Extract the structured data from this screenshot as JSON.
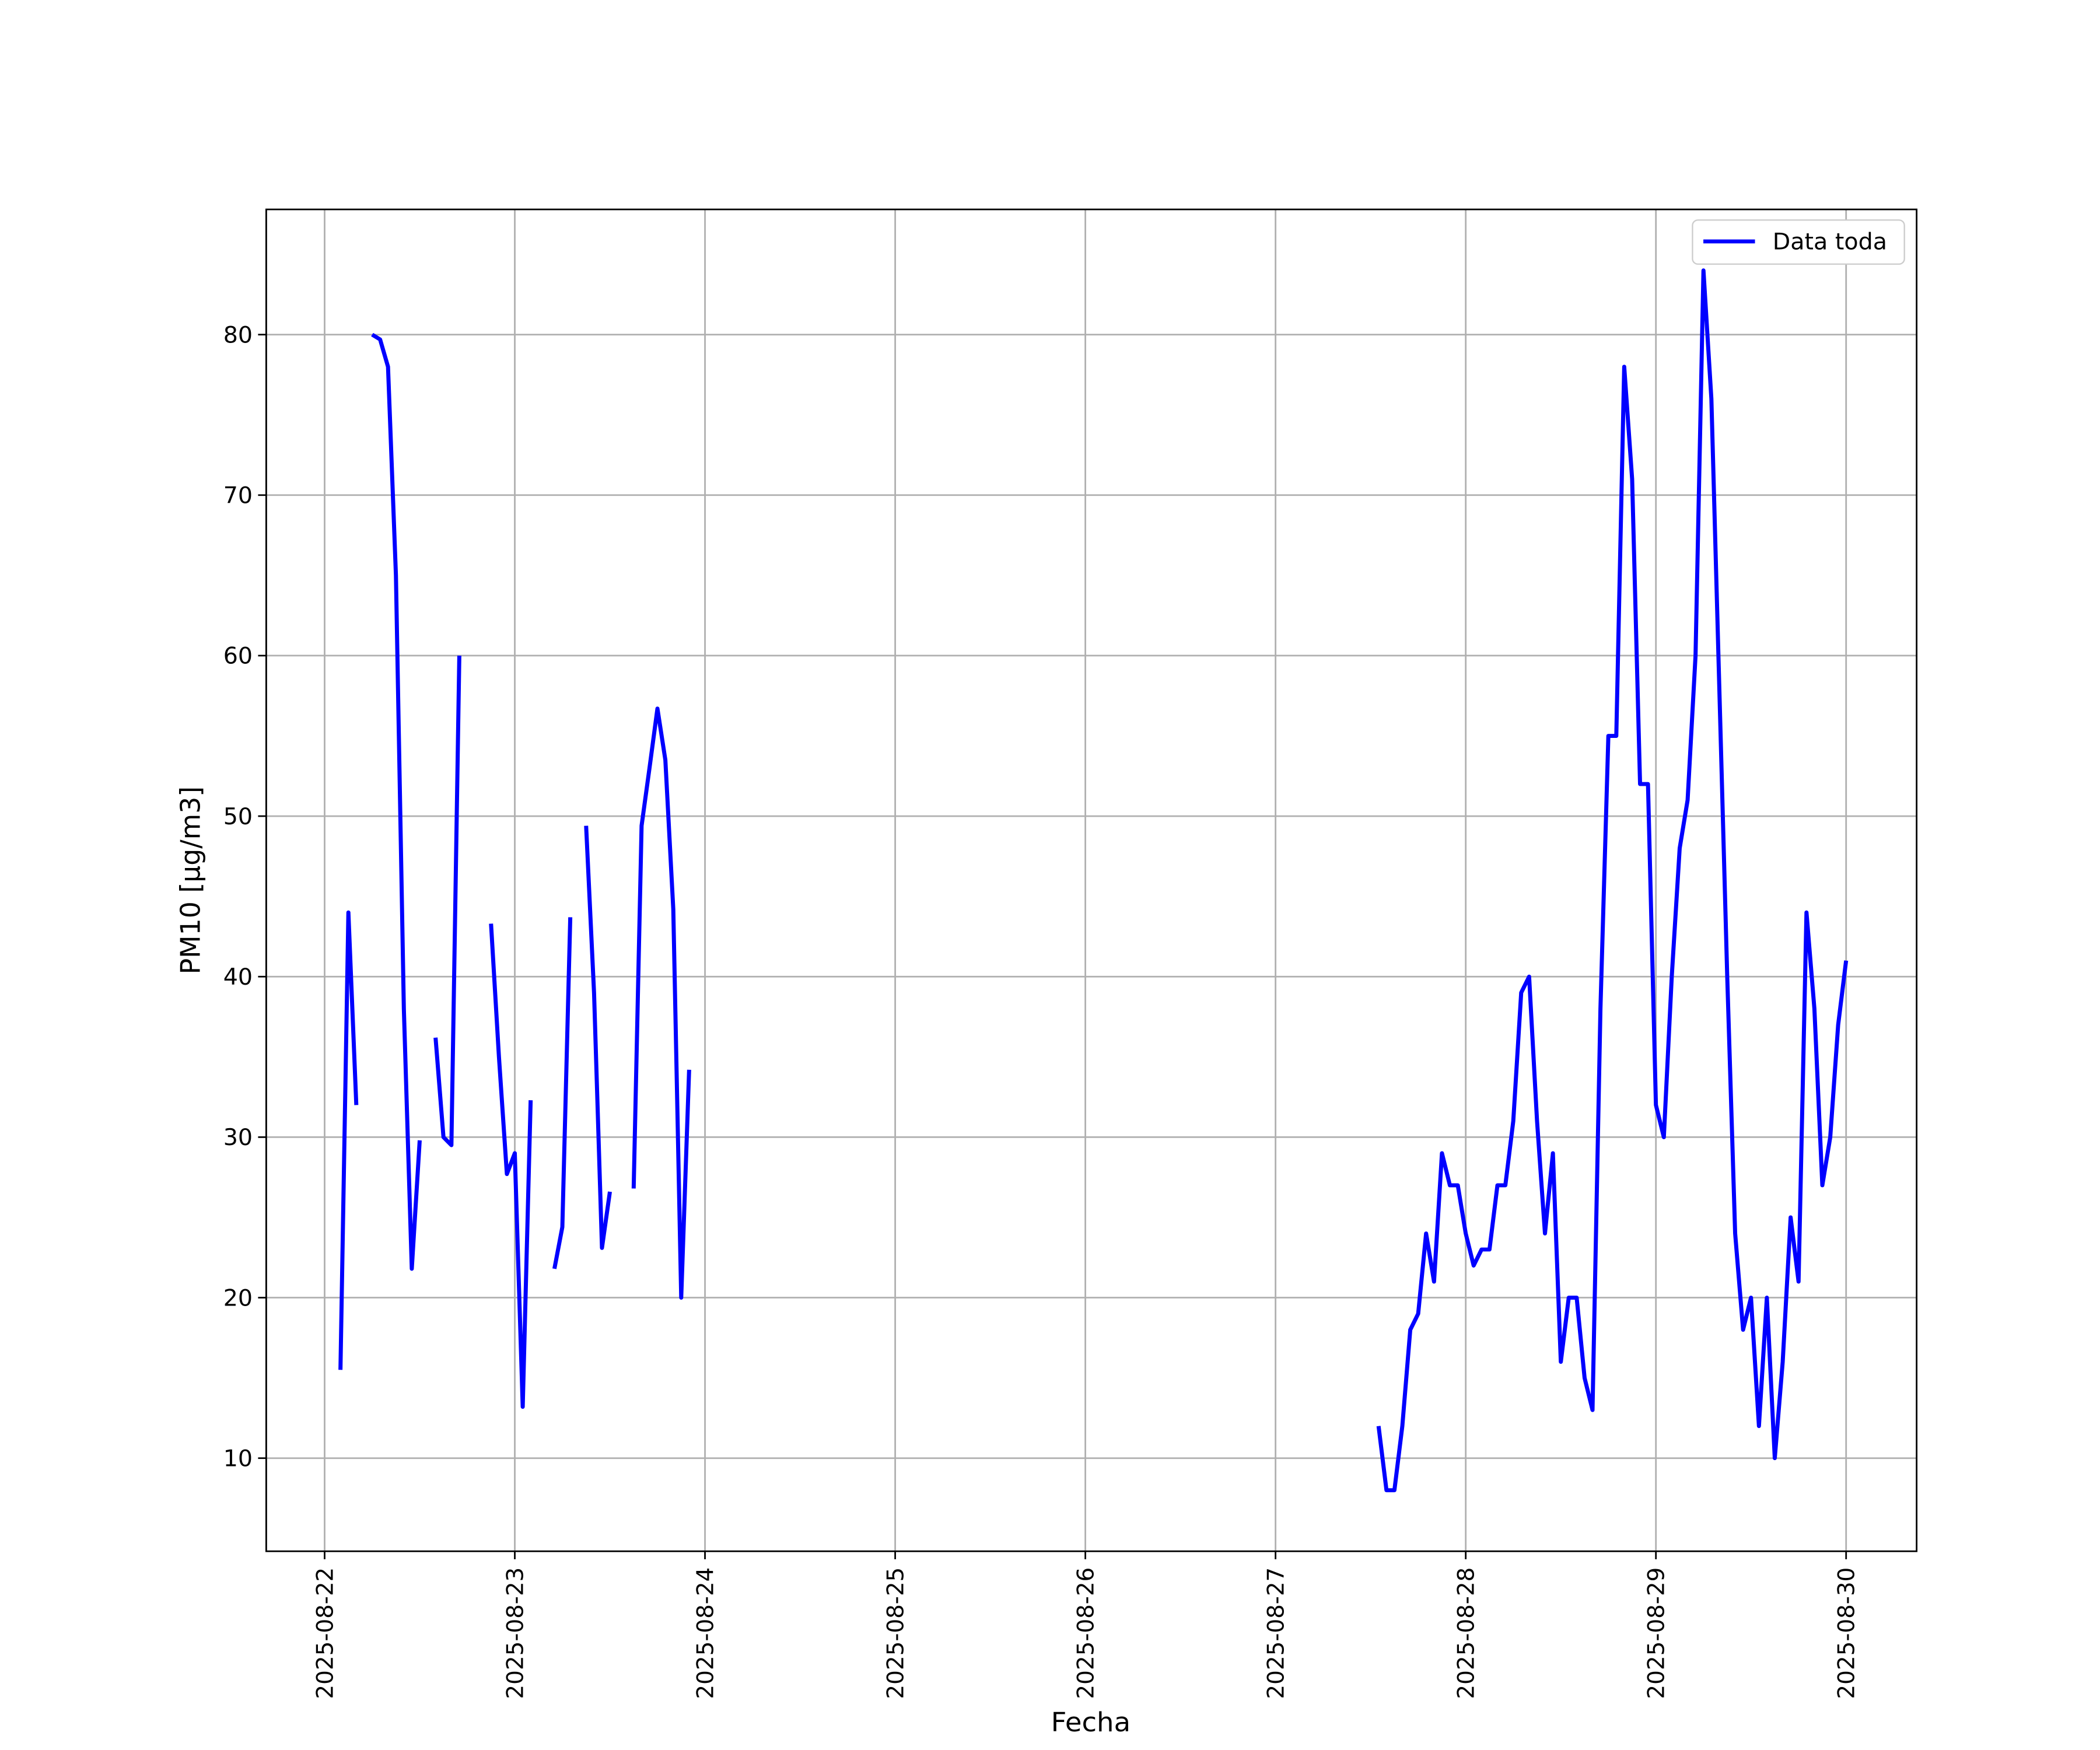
{
  "chart_data": {
    "type": "line",
    "xlabel": "Fecha",
    "ylabel": "PM10 [μg/m3]",
    "grid": true,
    "legend": "upper right",
    "x": [
      "2025-08-22 02:00",
      "2025-08-22 03:00",
      "2025-08-22 04:00",
      "2025-08-22 05:00",
      "2025-08-22 06:00",
      "2025-08-22 07:00",
      "2025-08-22 08:00",
      "2025-08-22 09:00",
      "2025-08-22 10:00",
      "2025-08-22 11:00",
      "2025-08-22 12:00",
      "2025-08-22 13:00",
      "2025-08-22 14:00",
      "2025-08-22 15:00",
      "2025-08-22 16:00",
      "2025-08-22 17:00",
      "2025-08-22 18:00",
      "2025-08-22 21:00",
      "2025-08-22 22:00",
      "2025-08-22 23:00",
      "2025-08-23 00:00",
      "2025-08-23 01:00",
      "2025-08-23 02:00",
      "2025-08-23 03:00",
      "2025-08-23 05:00",
      "2025-08-23 06:00",
      "2025-08-23 07:00",
      "2025-08-23 08:00",
      "2025-08-23 09:00",
      "2025-08-23 10:00",
      "2025-08-23 11:00",
      "2025-08-23 12:00",
      "2025-08-23 13:00",
      "2025-08-23 15:00",
      "2025-08-23 16:00",
      "2025-08-23 17:00",
      "2025-08-23 18:00",
      "2025-08-23 19:00",
      "2025-08-23 20:00",
      "2025-08-23 21:00",
      "2025-08-23 22:00",
      "2025-08-23 23:00",
      "2025-08-27 13:00",
      "2025-08-27 14:00",
      "2025-08-27 15:00",
      "2025-08-27 16:00",
      "2025-08-27 17:00",
      "2025-08-27 18:00",
      "2025-08-27 19:00",
      "2025-08-27 20:00",
      "2025-08-27 21:00",
      "2025-08-27 22:00",
      "2025-08-27 23:00",
      "2025-08-28 00:00",
      "2025-08-28 01:00",
      "2025-08-28 02:00",
      "2025-08-28 03:00",
      "2025-08-28 04:00",
      "2025-08-28 05:00",
      "2025-08-28 06:00",
      "2025-08-28 07:00",
      "2025-08-28 08:00",
      "2025-08-28 09:00",
      "2025-08-28 10:00",
      "2025-08-28 11:00",
      "2025-08-28 12:00",
      "2025-08-28 13:00",
      "2025-08-28 14:00",
      "2025-08-28 15:00",
      "2025-08-28 16:00",
      "2025-08-28 17:00",
      "2025-08-28 18:00",
      "2025-08-28 19:00",
      "2025-08-28 20:00",
      "2025-08-28 21:00",
      "2025-08-28 22:00",
      "2025-08-28 23:00",
      "2025-08-29 00:00",
      "2025-08-29 01:00",
      "2025-08-29 02:00",
      "2025-08-29 03:00",
      "2025-08-29 04:00",
      "2025-08-29 05:00",
      "2025-08-29 06:00",
      "2025-08-29 07:00",
      "2025-08-29 08:00",
      "2025-08-29 09:00",
      "2025-08-29 10:00",
      "2025-08-29 11:00",
      "2025-08-29 12:00",
      "2025-08-29 13:00",
      "2025-08-29 14:00",
      "2025-08-29 15:00",
      "2025-08-29 16:00",
      "2025-08-29 17:00",
      "2025-08-29 18:00",
      "2025-08-29 19:00",
      "2025-08-29 20:00",
      "2025-08-29 21:00",
      "2025-08-29 22:00",
      "2025-08-29 23:00",
      "2025-08-30 00:00"
    ],
    "series": [
      {
        "name": "Data toda",
        "color": "#0000ff",
        "values": [
          15.5,
          44,
          32,
          null,
          80,
          79.7,
          78,
          65,
          38,
          21.8,
          29.8,
          null,
          36.2,
          30,
          29.5,
          60,
          null,
          43.3,
          35,
          27.7,
          29,
          13.2,
          32.3,
          null,
          21.8,
          24.4,
          43.7,
          null,
          49.4,
          39,
          23.1,
          26.6,
          null,
          26.8,
          49.4,
          53,
          56.7,
          53.5,
          44.2,
          20,
          34.2,
          null,
          12,
          8,
          8,
          12,
          18,
          19,
          24,
          21,
          29,
          27,
          27,
          24,
          22,
          23,
          23,
          27,
          27,
          31,
          39,
          40,
          31,
          24,
          29,
          16,
          20,
          20,
          15,
          13,
          38,
          55,
          55,
          78,
          71,
          52,
          52,
          32,
          30,
          40,
          48,
          51,
          60,
          84,
          76,
          58,
          40,
          24,
          18,
          20,
          12,
          20,
          10,
          16,
          25,
          21,
          44,
          38,
          27,
          30,
          37,
          41
        ]
      }
    ],
    "xlim": [
      "2025-08-21 16:38",
      "2025-08-30 08:54"
    ],
    "xticks": [
      "2025-08-22",
      "2025-08-23",
      "2025-08-24",
      "2025-08-25",
      "2025-08-26",
      "2025-08-27",
      "2025-08-28",
      "2025-08-29",
      "2025-08-30"
    ],
    "ylim": [
      4.2,
      87.8
    ],
    "yticks": [
      10,
      20,
      30,
      40,
      50,
      60,
      70,
      80
    ]
  }
}
